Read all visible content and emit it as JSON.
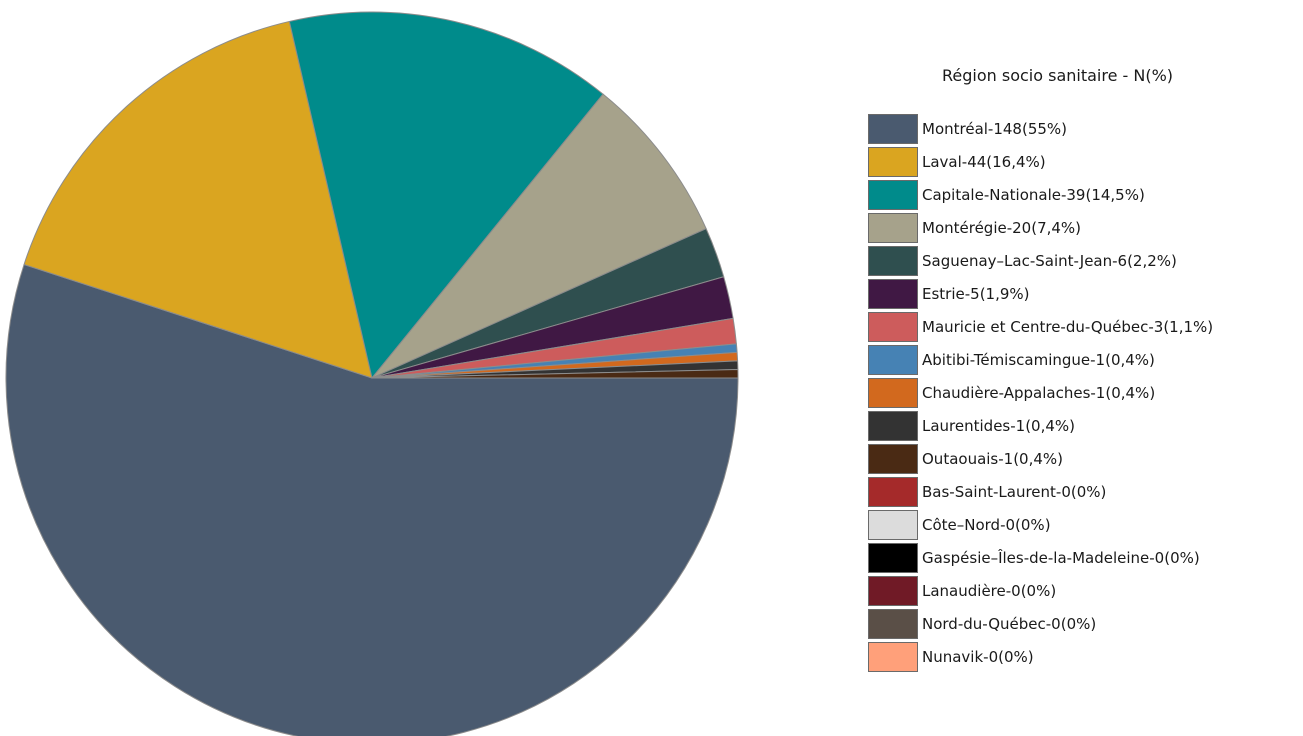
{
  "chart_data": {
    "type": "pie",
    "legend_title": "Région socio sanitaire - N(%)",
    "legend_position": "right",
    "start_angle_deg": 0,
    "direction": "clockwise",
    "slices": [
      {
        "label": "Montréal-148(55%)",
        "name": "Montréal",
        "value": 148,
        "percent": 55,
        "color": "#4a5a6f"
      },
      {
        "label": "Laval-44(16,4%)",
        "name": "Laval",
        "value": 44,
        "percent": 16.4,
        "color": "#daa520"
      },
      {
        "label": "Capitale-Nationale-39(14,5%)",
        "name": "Capitale-Nationale",
        "value": 39,
        "percent": 14.5,
        "color": "#008b8b"
      },
      {
        "label": "Montérégie-20(7,4%)",
        "name": "Montérégie",
        "value": 20,
        "percent": 7.4,
        "color": "#a6a28b"
      },
      {
        "label": "Saguenay–Lac-Saint-Jean-6(2,2%)",
        "name": "Saguenay–Lac-Saint-Jean",
        "value": 6,
        "percent": 2.2,
        "color": "#2f4f4f"
      },
      {
        "label": "Estrie-5(1,9%)",
        "name": "Estrie",
        "value": 5,
        "percent": 1.9,
        "color": "#401844"
      },
      {
        "label": "Mauricie et Centre-du-Québec-3(1,1%)",
        "name": "Mauricie et Centre-du-Québec",
        "value": 3,
        "percent": 1.1,
        "color": "#cd5c5c"
      },
      {
        "label": "Abitibi-Témiscamingue-1(0,4%)",
        "name": "Abitibi-Témiscamingue",
        "value": 1,
        "percent": 0.4,
        "color": "#4682b4"
      },
      {
        "label": "Chaudière-Appalaches-1(0,4%)",
        "name": "Chaudière-Appalaches",
        "value": 1,
        "percent": 0.4,
        "color": "#d2691e"
      },
      {
        "label": "Laurentides-1(0,4%)",
        "name": "Laurentides",
        "value": 1,
        "percent": 0.4,
        "color": "#333333"
      },
      {
        "label": "Outaouais-1(0,4%)",
        "name": "Outaouais",
        "value": 1,
        "percent": 0.4,
        "color": "#4a2a14"
      },
      {
        "label": "Bas-Saint-Laurent-0(0%)",
        "name": "Bas-Saint-Laurent",
        "value": 0,
        "percent": 0,
        "color": "#a52a2a"
      },
      {
        "label": "Côte–Nord-0(0%)",
        "name": "Côte–Nord",
        "value": 0,
        "percent": 0,
        "color": "#dcdcdc"
      },
      {
        "label": "Gaspésie–Îles-de-la-Madeleine-0(0%)",
        "name": "Gaspésie–Îles-de-la-Madeleine",
        "value": 0,
        "percent": 0,
        "color": "#000000"
      },
      {
        "label": "Lanaudière-0(0%)",
        "name": "Lanaudière",
        "value": 0,
        "percent": 0,
        "color": "#701a26"
      },
      {
        "label": "Nord-du-Québec-0(0%)",
        "name": "Nord-du-Québec",
        "value": 0,
        "percent": 0,
        "color": "#5a4f47"
      },
      {
        "label": "Nunavik-0(0%)",
        "name": "Nunavik",
        "value": 0,
        "percent": 0,
        "color": "#ffa07a"
      }
    ]
  }
}
